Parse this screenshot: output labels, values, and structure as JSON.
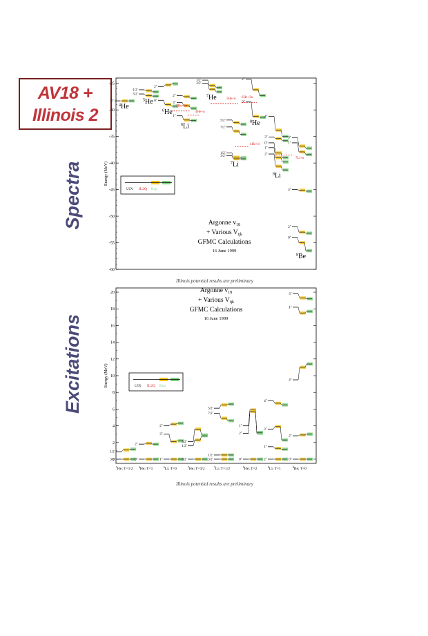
{
  "header": {
    "title_line1": "AV18 +",
    "title_line2": "Illinois 2",
    "side_top": "Spectra",
    "side_bottom": "Excitations"
  },
  "colors": {
    "uix": "#333333",
    "il2q": "#f2c21d",
    "exp": "#7fd17f",
    "red": "#e02020",
    "accent": "#c0353b",
    "side": "#4b4a78"
  },
  "chart_data": [
    {
      "type": "scatter",
      "ylabel": "Energy (MeV)",
      "ylim": [
        -60,
        -24
      ],
      "yticks": [
        -25,
        -30,
        -35,
        -40,
        -45,
        -50,
        -55,
        -60
      ],
      "legend": {
        "placement": "middle-left",
        "entries": [
          "UIX",
          "IL2Q",
          "Exp"
        ]
      },
      "annotation": [
        "Argonne v",
        "18",
        "+ Various V",
        "ijk",
        "GFMC Calculations",
        "16 June 1999"
      ],
      "footnote": "Illinois potential results are preliminary",
      "nuclei": [
        {
          "label": "He",
          "mass": "4",
          "levels": [
            {
              "tag": "0+",
              "E": [
                -28.3,
                -28.3,
                -28.3
              ]
            }
          ]
        },
        {
          "label": "He",
          "mass": "5",
          "levels": [
            {
              "tag": "1/2-",
              "E": [
                -26.2,
                -26.4,
                -26.6
              ]
            },
            {
              "tag": "3/2-",
              "E": [
                -27.0,
                -27.3,
                -27.4
              ]
            }
          ]
        },
        {
          "label": "He",
          "mass": "6",
          "levels": [
            {
              "tag": "2+",
              "E": [
                -25.6,
                -25.3,
                -25.1
              ]
            },
            {
              "tag": "0+",
              "E": [
                -28.2,
                -29.0,
                -29.3
              ]
            }
          ]
        },
        {
          "label": "Li",
          "mass": "6",
          "levels": [
            {
              "tag": "2+",
              "E": [
                -27.3,
                -27.5,
                -27.8
              ]
            },
            {
              "tag": "3+",
              "E": [
                -28.6,
                -29.2,
                -29.7
              ]
            },
            {
              "tag": "1+",
              "E": [
                -31.1,
                -31.9,
                -32.0
              ]
            }
          ]
        },
        {
          "label": "He",
          "mass": "7",
          "levels": [
            {
              "tag": "1/2-",
              "E": [
                -24.4,
                -25.4,
                -25.8
              ]
            },
            {
              "tag": "3/2-",
              "E": [
                -25.0,
                -26.1,
                -26.6
              ]
            }
          ]
        },
        {
          "label": "Li",
          "mass": "7",
          "levels": [
            {
              "tag": "5/2-",
              "E": [
                -31.9,
                -32.4,
                -32.7
              ]
            },
            {
              "tag": "7/2-",
              "E": [
                -33.2,
                -34.0,
                -34.6
              ]
            },
            {
              "tag": "1/2-",
              "E": [
                -38.1,
                -38.9,
                -39.0
              ]
            },
            {
              "tag": "3/2-",
              "E": [
                -38.6,
                -39.2,
                -39.2
              ]
            }
          ]
        },
        {
          "label": "He",
          "mass": "8",
          "levels": [
            {
              "tag": "2+",
              "E": [
                -24.2,
                -26.2,
                -27.3
              ]
            },
            {
              "tag": "0+",
              "E": [
                -28.5,
                -31.2,
                -31.4
              ]
            }
          ]
        },
        {
          "label": "Li",
          "mass": "8",
          "levels": [
            {
              "tag": "4+",
              "E": [
                -31.2,
                -33.8,
                -35.0
              ]
            },
            {
              "tag": "3+",
              "E": [
                -35.1,
                -35.4,
                -35.8
              ]
            },
            {
              "tag": "0+",
              "E": [
                -36.2,
                -38.1,
                -39.0
              ]
            },
            {
              "tag": "1+",
              "E": [
                -37.1,
                -39.0,
                -39.8
              ]
            },
            {
              "tag": "2+",
              "E": [
                -38.3,
                -40.6,
                -41.3
              ]
            }
          ]
        },
        {
          "label": "Be",
          "mass": "8",
          "levels": [
            {
              "tag": "3+",
              "E": [
                -35.2,
                -36.8,
                -37.2
              ]
            },
            {
              "tag": "1+",
              "E": [
                -36.2,
                -37.9,
                -38.4
              ]
            },
            {
              "tag": "4+",
              "E": [
                -45.0,
                -45.1,
                -45.3
              ]
            },
            {
              "tag": "2+",
              "E": [
                -52.0,
                -53.0,
                -53.2
              ]
            },
            {
              "tag": "0+",
              "E": [
                -54.0,
                -55.0,
                -56.5
              ]
            }
          ]
        }
      ],
      "red_labels": [
        "3He+2n",
        "4He+n",
        "5He+n",
        "6He+2n",
        "4He+d",
        "7Li+n"
      ]
    },
    {
      "type": "scatter",
      "ylabel": "Energy (MeV)",
      "ylim": [
        -0.5,
        20.5
      ],
      "yticks": [
        0,
        2,
        4,
        6,
        8,
        10,
        12,
        14,
        16,
        18,
        20
      ],
      "legend": {
        "placement": "middle-left",
        "entries": [
          "UIX",
          "IL2Q",
          "Exp"
        ]
      },
      "annotation": [
        "Argonne v",
        "18",
        "+ Various V",
        "ijk",
        "GFMC Calculations",
        "16 June 1999"
      ],
      "footnote": "Illinois potential results are preliminary",
      "groups": [
        {
          "label": "He; T=1/2",
          "mass": "5",
          "levels": [
            {
              "tag": "1/2-",
              "E": [
                0.9,
                1.1,
                1.2
              ]
            },
            {
              "tag": "3/2-",
              "E": [
                0,
                0,
                0
              ]
            }
          ]
        },
        {
          "label": "He; T=1",
          "mass": "6",
          "levels": [
            {
              "tag": "2+",
              "E": [
                1.8,
                1.9,
                1.8
              ]
            },
            {
              "tag": "0+",
              "E": [
                0,
                0,
                0
              ]
            }
          ]
        },
        {
          "label": "Li; T=0",
          "mass": "6",
          "levels": [
            {
              "tag": "2+",
              "E": [
                4.0,
                4.2,
                4.3
              ]
            },
            {
              "tag": "3+",
              "E": [
                3.0,
                2.1,
                2.2
              ]
            },
            {
              "tag": "1+",
              "E": [
                0,
                0,
                0
              ]
            }
          ]
        },
        {
          "label": "He; T=3/2",
          "mass": "7",
          "levels": [
            {
              "tag": "5/2-",
              "E": [
                2.1,
                3.6,
                2.9
              ]
            },
            {
              "tag": "1/2-",
              "E": [
                1.6,
                2.3,
                2.8
              ]
            },
            {
              "tag": "3/2-",
              "E": [
                0,
                0,
                0
              ]
            }
          ]
        },
        {
          "label": "Li; T=1/2",
          "mass": "7",
          "levels": [
            {
              "tag": "5/2-",
              "E": [
                6.1,
                6.5,
                6.6
              ]
            },
            {
              "tag": "7/2-",
              "E": [
                5.5,
                4.9,
                4.6
              ]
            },
            {
              "tag": "1/2-",
              "E": [
                0.5,
                0.5,
                0.5
              ]
            },
            {
              "tag": "3/2-",
              "E": [
                0,
                0,
                0
              ]
            }
          ]
        },
        {
          "label": "He; T=2",
          "mass": "8",
          "levels": [
            {
              "tag": "1+",
              "E": [
                4.0,
                5.9,
                3.1
              ]
            },
            {
              "tag": "2+",
              "E": [
                3.1,
                5.7,
                3.2
              ]
            },
            {
              "tag": "0+",
              "E": [
                0,
                0,
                0
              ]
            }
          ]
        },
        {
          "label": "Li; T=1",
          "mass": "8",
          "levels": [
            {
              "tag": "4+",
              "E": [
                7.0,
                6.7,
                6.5
              ]
            },
            {
              "tag": "3+",
              "E": [
                3.6,
                3.9,
                2.3
              ]
            },
            {
              "tag": "1+",
              "E": [
                1.5,
                1.3,
                1.2
              ]
            },
            {
              "tag": "2+",
              "E": [
                0,
                0,
                0
              ]
            }
          ]
        },
        {
          "label": "Be; T=0",
          "mass": "8",
          "levels": [
            {
              "tag": "3+",
              "E": [
                19.8,
                19.3,
                19.2
              ]
            },
            {
              "tag": "1+",
              "E": [
                18.2,
                17.5,
                17.7
              ]
            },
            {
              "tag": "4+",
              "E": [
                9.5,
                11.0,
                11.4
              ]
            },
            {
              "tag": "2+",
              "E": [
                2.8,
                2.9,
                3.0
              ]
            },
            {
              "tag": "0+",
              "E": [
                0,
                0,
                0
              ]
            }
          ]
        }
      ]
    }
  ]
}
